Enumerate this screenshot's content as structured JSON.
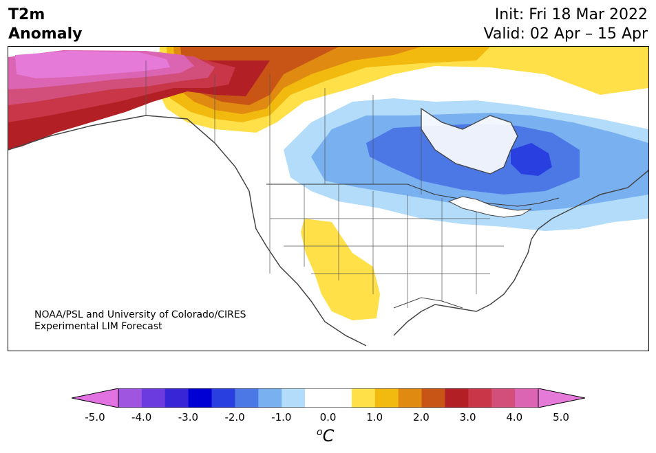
{
  "header": {
    "title_line1": "T2m",
    "title_line2": "Anomaly",
    "init": "Init: Fri 18 Mar 2022",
    "valid": "Valid: 02 Apr – 15 Apr"
  },
  "credit": {
    "line1": "NOAA/PSL and University of Colorado/CIRES",
    "line2": "Experimental LIM Forecast"
  },
  "colorbar": {
    "colors": [
      "#e271e2",
      "#9f55e0",
      "#6b3be0",
      "#3725d6",
      "#0000d4",
      "#2a3fe0",
      "#4c78e6",
      "#78b0f0",
      "#b2dcfa",
      "#ffffff",
      "#ffffff",
      "#ffe048",
      "#f2b90f",
      "#e08a12",
      "#c85516",
      "#b22025",
      "#c83647",
      "#d24f7c",
      "#db65b2",
      "#e67ad8"
    ],
    "tick_labels": [
      "-5.0",
      "-4.0",
      "-3.0",
      "-2.0",
      "-1.0",
      "0.0",
      "1.0",
      "2.0",
      "3.0",
      "4.0",
      "5.0"
    ],
    "unit_base": "C",
    "unit_sup": "o"
  }
}
